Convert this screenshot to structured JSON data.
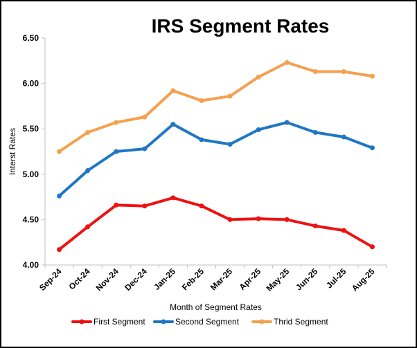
{
  "chart_data": {
    "type": "line",
    "title": "IRS Segment Rates",
    "xlabel": "Month of Segment Rates",
    "ylabel": "Interst Rates",
    "categories": [
      "Sep-24",
      "Oct-24",
      "Nov-24",
      "Dec-24",
      "Jan-25",
      "Feb-25",
      "Mar-25",
      "Apr-25",
      "May-25",
      "Jun-25",
      "Jul-25",
      "Aug-25"
    ],
    "ylim": [
      4.0,
      6.5
    ],
    "yticks": [
      "4.00",
      "4.50",
      "5.00",
      "5.50",
      "6.00",
      "6.50"
    ],
    "grid": false,
    "legend_position": "bottom",
    "series": [
      {
        "name": "First Segment",
        "color": "#ee1111",
        "values": [
          4.17,
          4.42,
          4.66,
          4.65,
          4.74,
          4.65,
          4.5,
          4.51,
          4.5,
          4.43,
          4.38,
          4.2
        ]
      },
      {
        "name": "Second Segment",
        "color": "#1f77c4",
        "values": [
          4.76,
          5.04,
          5.25,
          5.28,
          5.55,
          5.38,
          5.33,
          5.49,
          5.57,
          5.46,
          5.41,
          5.29
        ]
      },
      {
        "name": "Thrid Segment",
        "color": "#f5a04e",
        "values": [
          5.25,
          5.46,
          5.57,
          5.63,
          5.92,
          5.81,
          5.86,
          6.07,
          6.23,
          6.13,
          6.13,
          6.08
        ]
      }
    ]
  }
}
